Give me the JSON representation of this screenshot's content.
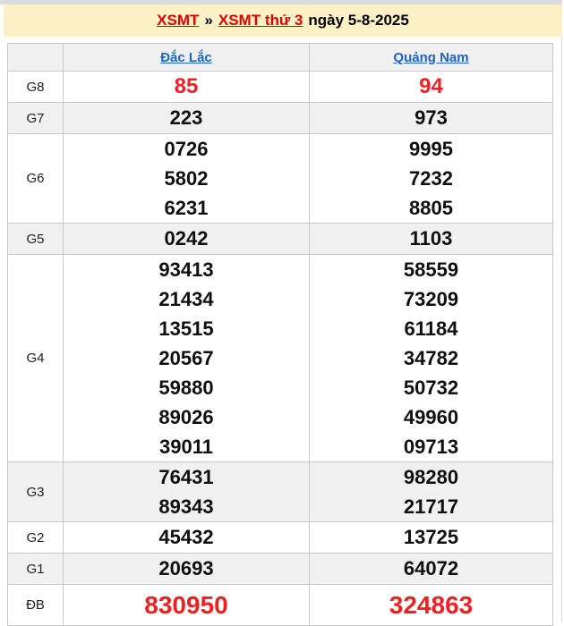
{
  "title": {
    "link1": "XSMT",
    "separator": "»",
    "link2": "XSMT thứ 3",
    "date_text": "ngày 5-8-2025"
  },
  "table": {
    "columns": [
      {
        "label": "Đắc Lắc"
      },
      {
        "label": "Quảng Nam"
      }
    ],
    "rows": [
      {
        "label": "G8",
        "style": "highlight",
        "values": [
          [
            "85"
          ],
          [
            "94"
          ]
        ]
      },
      {
        "label": "G7",
        "style": "normal",
        "values": [
          [
            "223"
          ],
          [
            "973"
          ]
        ]
      },
      {
        "label": "G6",
        "style": "normal",
        "values": [
          [
            "0726",
            "5802",
            "6231"
          ],
          [
            "9995",
            "7232",
            "8805"
          ]
        ]
      },
      {
        "label": "G5",
        "style": "normal",
        "values": [
          [
            "0242"
          ],
          [
            "1103"
          ]
        ]
      },
      {
        "label": "G4",
        "style": "normal",
        "values": [
          [
            "93413",
            "21434",
            "13515",
            "20567",
            "59880",
            "89026",
            "39011"
          ],
          [
            "58559",
            "73209",
            "61184",
            "34782",
            "50732",
            "49960",
            "09713"
          ]
        ]
      },
      {
        "label": "G3",
        "style": "normal",
        "values": [
          [
            "76431",
            "89343"
          ],
          [
            "98280",
            "21717"
          ]
        ]
      },
      {
        "label": "G2",
        "style": "normal",
        "values": [
          [
            "45432"
          ],
          [
            "13725"
          ]
        ]
      },
      {
        "label": "G1",
        "style": "normal",
        "values": [
          [
            "20693"
          ],
          [
            "64072"
          ]
        ]
      },
      {
        "label": "ĐB",
        "style": "special",
        "values": [
          [
            "830950"
          ],
          [
            "324863"
          ]
        ]
      }
    ]
  },
  "colors": {
    "title_bar_bg": "#fbf0c6",
    "top_strip": "#dcdcdc",
    "alt_row_bg": "#f0f0f0",
    "border": "#c9c9c9",
    "red_number": "#ee2024",
    "red_link": "#dd0000",
    "blue_link": "#1e62c8",
    "number_black": "#101010"
  }
}
